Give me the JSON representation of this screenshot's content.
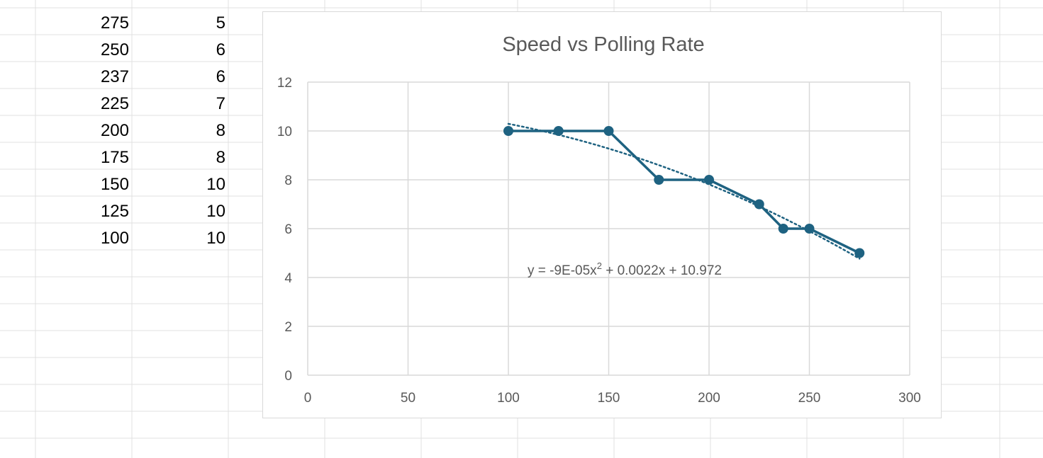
{
  "spreadsheet": {
    "rows": [
      [
        "275",
        "5"
      ],
      [
        "250",
        "6"
      ],
      [
        "237",
        "6"
      ],
      [
        "225",
        "7"
      ],
      [
        "200",
        "8"
      ],
      [
        "175",
        "8"
      ],
      [
        "150",
        "10"
      ],
      [
        "125",
        "10"
      ],
      [
        "100",
        "10"
      ]
    ],
    "gridline_color": "#e1e1e1"
  },
  "chart_data": {
    "type": "scatter",
    "title": "Speed vs Polling Rate",
    "xlabel": "",
    "ylabel": "",
    "xlim": [
      0,
      300
    ],
    "ylim": [
      0,
      12
    ],
    "xticks": [
      "0",
      "50",
      "100",
      "150",
      "200",
      "250",
      "300"
    ],
    "yticks": [
      "0",
      "2",
      "4",
      "6",
      "8",
      "10",
      "12"
    ],
    "grid": true,
    "legend": "none",
    "series": [
      {
        "x": [
          100,
          125,
          150,
          175,
          200,
          225,
          237,
          250,
          275
        ],
        "y": [
          10,
          10,
          10,
          8,
          8,
          7,
          6,
          6,
          5
        ],
        "color": "#1e6281",
        "marker": "circle",
        "line": "solid"
      }
    ],
    "trendline": {
      "kind": "polynomial",
      "order": 2,
      "coefficients": [
        -9e-05,
        0.0022,
        10.972
      ],
      "x_range": [
        100,
        275
      ],
      "style": "dotted",
      "color": "#1e6281",
      "equation_parts": [
        "y = -9E-05x",
        "2",
        " + 0.0022x + 10.972"
      ]
    },
    "colors": {
      "grid": "#d9d9d9",
      "tick_text": "#595959",
      "title_text": "#595959"
    }
  }
}
